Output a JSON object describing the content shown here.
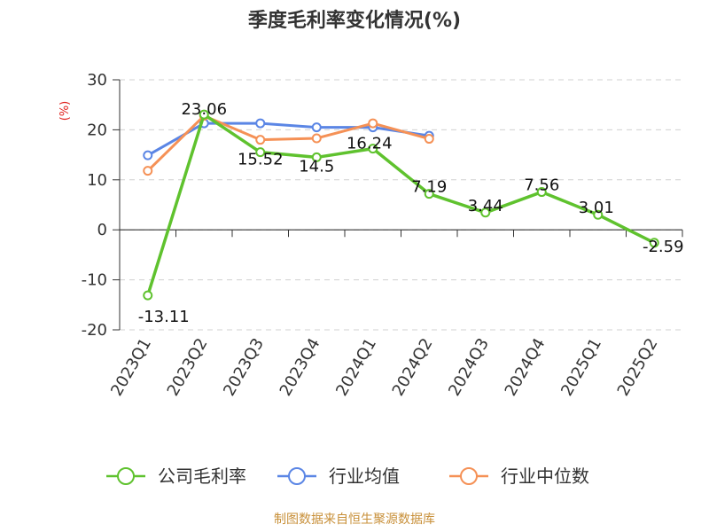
{
  "chart_data": {
    "type": "line",
    "title": "季度毛利率变化情况(%)",
    "ylabel": "(%)",
    "ylim": [
      -20,
      30
    ],
    "yticks": [
      30,
      20,
      10,
      0,
      -10,
      -20
    ],
    "categories": [
      "2023Q1",
      "2023Q2",
      "2023Q3",
      "2023Q4",
      "2024Q1",
      "2024Q2",
      "2024Q3",
      "2024Q4",
      "2025Q1",
      "2025Q2"
    ],
    "series": [
      {
        "name": "公司毛利率",
        "color": "#5fc22e",
        "values": [
          -13.11,
          23.06,
          15.52,
          14.5,
          16.24,
          7.19,
          3.44,
          7.56,
          3.01,
          -2.59
        ],
        "labels": [
          "-13.11",
          "23.06",
          "15.52",
          "14.5",
          "16.24",
          "7.19",
          "3.44",
          "7.56",
          "3.01",
          "-2.59"
        ]
      },
      {
        "name": "行业均值",
        "color": "#5b86e5",
        "values": [
          14.9,
          21.3,
          21.3,
          20.5,
          20.5,
          18.8,
          null,
          null,
          null,
          null
        ]
      },
      {
        "name": "行业中位数",
        "color": "#f59156",
        "values": [
          11.8,
          22.8,
          18.0,
          18.3,
          21.3,
          18.2,
          null,
          null,
          null,
          null
        ]
      }
    ],
    "grid": true,
    "legend": "bottom"
  },
  "source": "制图数据来自恒生聚源数据库"
}
